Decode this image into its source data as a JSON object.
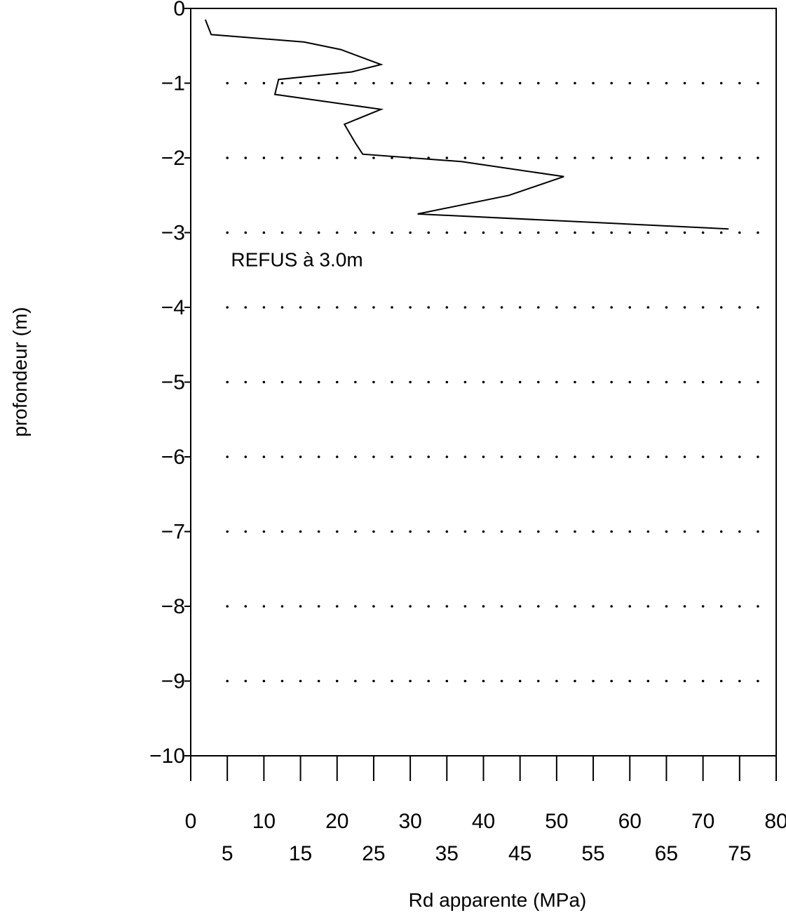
{
  "chart_data": {
    "type": "line",
    "xlabel": "Rd apparente (MPa)",
    "ylabel": "profondeur (m)",
    "xlim": [
      0,
      80
    ],
    "ylim": [
      -10,
      0
    ],
    "x_ticks_top": [
      0,
      10,
      20,
      30,
      40,
      50,
      60,
      70,
      80
    ],
    "x_ticks_bottom": [
      5,
      15,
      25,
      35,
      45,
      55,
      65,
      75
    ],
    "y_ticks": [
      0,
      -1,
      -2,
      -3,
      -4,
      -5,
      -6,
      -7,
      -8,
      -9,
      -10
    ],
    "grid": "dotted",
    "annotation": "REFUS à 3.0m",
    "series": [
      {
        "x": [
          2.0,
          2.8,
          15.5,
          20.5,
          26.0,
          22.0,
          12.0,
          11.5,
          26.0,
          21.0,
          22.5,
          23.5,
          37.0,
          51.0,
          43.5,
          31.0,
          73.5
        ],
        "y": [
          -0.15,
          -0.35,
          -0.45,
          -0.55,
          -0.75,
          -0.85,
          -0.95,
          -1.15,
          -1.35,
          -1.55,
          -1.8,
          -1.95,
          -2.05,
          -2.25,
          -2.5,
          -2.75,
          -2.95
        ]
      }
    ]
  }
}
